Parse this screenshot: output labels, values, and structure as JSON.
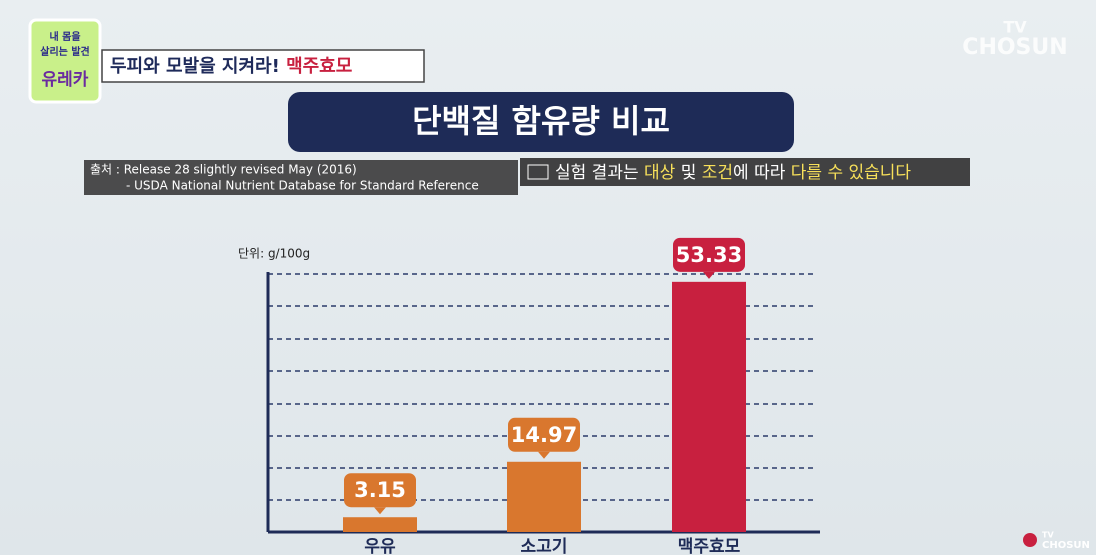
{
  "logo": {
    "line1": "내 몸을",
    "line2": "살리는 발견",
    "line3": "유레카"
  },
  "header": {
    "text": "두피와 모발을 지켜라!",
    "highlight": "맥주효모"
  },
  "watermark": {
    "line1": "TV",
    "line2": "CHOSUN"
  },
  "source": {
    "line1": "출처 : Release 28 slightly revised May (2016)",
    "line2": "- USDA National Nutrient Database for Standard Reference"
  },
  "notice": {
    "parts": [
      "실험 결과는 ",
      "대상",
      " 및 ",
      "조건",
      "에 따라 ",
      "다를 수 있습니다"
    ]
  },
  "corner_logo": {
    "line1": "TV",
    "line2": "CHOSUN"
  },
  "chart_data": {
    "type": "bar",
    "title": "단백질 함유량 비교",
    "unit_label": "단위: g/100g",
    "categories": [
      "우유",
      "소고기",
      "맥주효모"
    ],
    "values": [
      3.15,
      14.97,
      53.33
    ],
    "colors": [
      "#d9772e",
      "#d9772e",
      "#c8203f"
    ],
    "ylim": [
      0,
      55
    ]
  }
}
